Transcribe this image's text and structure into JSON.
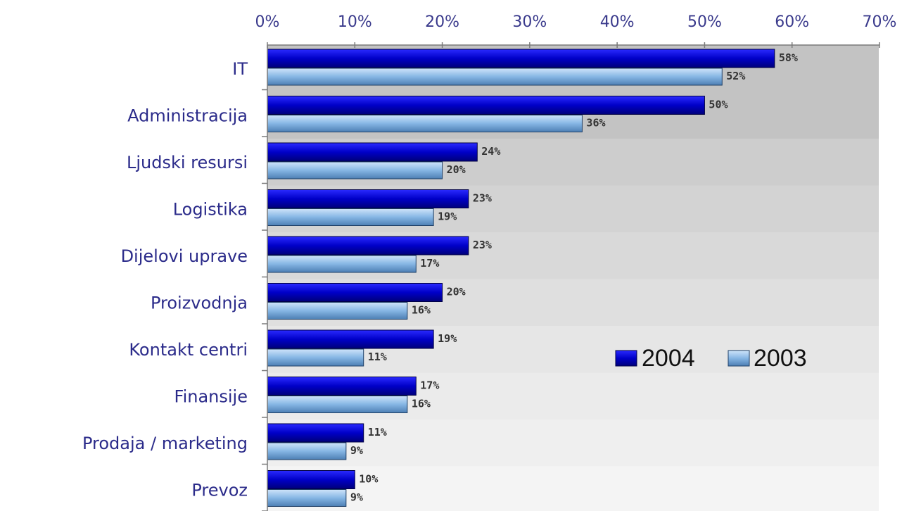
{
  "chart_data": {
    "type": "bar",
    "orientation": "horizontal",
    "categories": [
      "IT",
      "Administracija",
      "Ljudski resursi",
      "Logistika",
      "Dijelovi uprave",
      "Proizvodnja",
      "Kontakt centri",
      "Finansije",
      "Prodaja / marketing",
      "Prevoz"
    ],
    "series": [
      {
        "name": "2004",
        "values": [
          58,
          50,
          24,
          23,
          23,
          20,
          19,
          17,
          11,
          10
        ],
        "color": "#0000c8"
      },
      {
        "name": "2003",
        "values": [
          52,
          36,
          20,
          19,
          17,
          16,
          11,
          16,
          9,
          9
        ],
        "color": "#7fb0e0"
      }
    ],
    "data_labels_2004": [
      "58%",
      "50%",
      "24%",
      "23%",
      "23%",
      "20%",
      "19%",
      "17%",
      "11%",
      "10%"
    ],
    "data_labels_2003": [
      "52%",
      "36%",
      "20%",
      "19%",
      "17%",
      "16%",
      "11%",
      "16%",
      "9%",
      "9%"
    ],
    "xlim": [
      0,
      70
    ],
    "x_ticks": [
      "0%",
      "10%",
      "20%",
      "30%",
      "40%",
      "50%",
      "60%",
      "70%"
    ],
    "x_axis_position": "top",
    "legend_position": "right-middle",
    "legend_labels": [
      "2004",
      "2003"
    ],
    "grid": false,
    "title": "",
    "xlabel": "",
    "ylabel": ""
  }
}
